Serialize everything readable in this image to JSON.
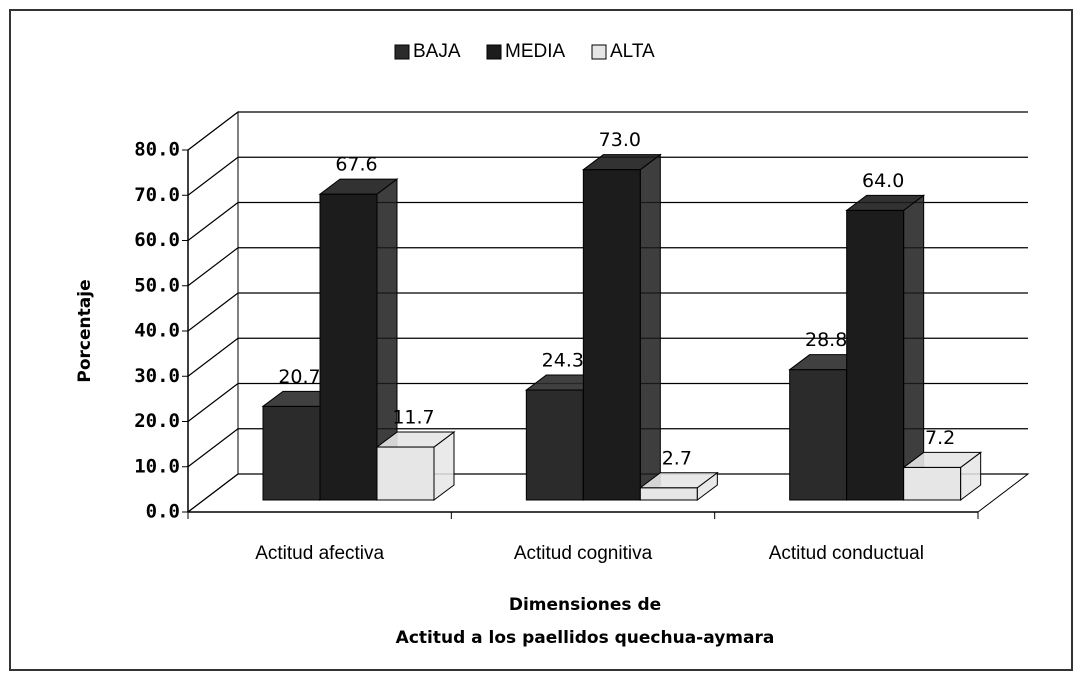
{
  "chart_data": {
    "type": "bar3d",
    "categories": [
      "Actitud afectiva",
      "Actitud cognitiva",
      "Actitud conductual"
    ],
    "series": [
      {
        "name": "BAJA",
        "color": "#2b2b2b",
        "values": [
          20.7,
          24.3,
          28.8
        ],
        "value_labels": [
          "20.7",
          "24.3",
          "28.8"
        ]
      },
      {
        "name": "MEDIA",
        "color": "#1c1c1c",
        "values": [
          67.6,
          73.0,
          64.0
        ],
        "value_labels": [
          "67.6",
          "73.0",
          "64.0"
        ]
      },
      {
        "name": "ALTA",
        "color": "#e6e6e6",
        "values": [
          11.7,
          2.7,
          7.2
        ],
        "value_labels": [
          "11.7",
          "2.7",
          "7.2"
        ]
      }
    ],
    "ylabel": "Porcentaje",
    "xlabel": [
      "Dimensiones de",
      "Actitud a los paellidos quechua-aymara"
    ],
    "ylim": [
      0,
      80
    ],
    "yticks": [
      {
        "value": 0,
        "label": "0.0"
      },
      {
        "value": 10,
        "label": "10.0"
      },
      {
        "value": 20,
        "label": "20.0"
      },
      {
        "value": 30,
        "label": "30.0"
      },
      {
        "value": 40,
        "label": "40.0"
      },
      {
        "value": 50,
        "label": "50.0"
      },
      {
        "value": 60,
        "label": "60.0"
      },
      {
        "value": 70,
        "label": "70.0"
      },
      {
        "value": 80,
        "label": "80.0"
      }
    ],
    "grid": true,
    "legend": "top"
  }
}
